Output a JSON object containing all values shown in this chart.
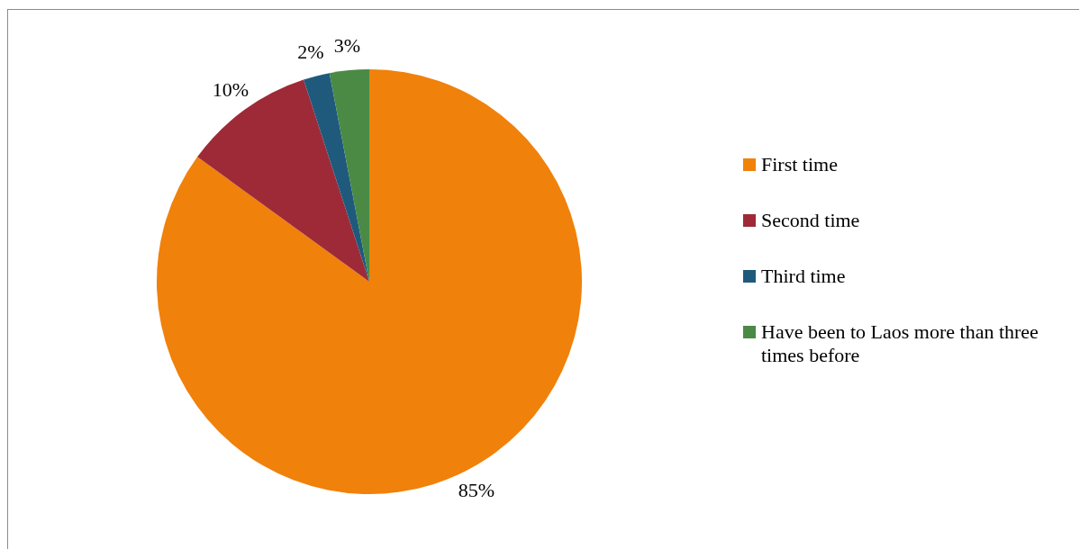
{
  "chart_data": {
    "type": "pie",
    "categories": [
      "First time",
      "Second time",
      "Third time",
      "Have been to Laos more than three times before"
    ],
    "values": [
      85,
      10,
      2,
      3
    ],
    "colors": [
      "#f0810a",
      "#9e2a38",
      "#1f5a7c",
      "#4a8a45"
    ],
    "value_labels": [
      "85%",
      "10%",
      "2%",
      "3%"
    ],
    "legend": "right"
  }
}
